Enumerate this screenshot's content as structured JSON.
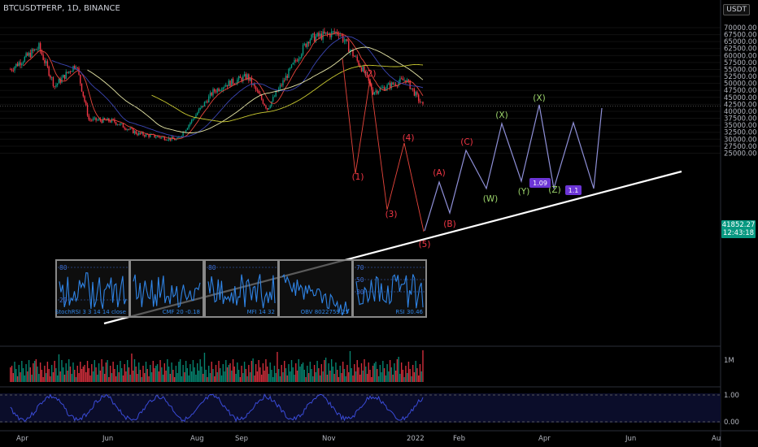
{
  "header": {
    "symbol": "BTCUSDTPERP, 1D, BINANCE",
    "currency": "USDT"
  },
  "price_tag": {
    "price": "41852.27",
    "countdown": "12:43:18"
  },
  "colors": {
    "up": "#089981",
    "down": "#f23645",
    "line_white": "#ffffff",
    "projection": "#8f90d8",
    "wave_red": "#f23645",
    "wave_green": "#9bd36a",
    "rsi": "#3a4bd8",
    "box_label": "#6c35d6"
  },
  "chart_data": {
    "type": "candlestick",
    "y_axis_ticks": [
      "70000.00",
      "67500.00",
      "65000.00",
      "62500.00",
      "60000.00",
      "57500.00",
      "55000.00",
      "52500.00",
      "50000.00",
      "47500.00",
      "45000.00",
      "42500.00",
      "40000.00",
      "37500.00",
      "35000.00",
      "32500.00",
      "30000.00",
      "27500.00",
      "25000.00"
    ],
    "ylim": [
      24000,
      71500
    ],
    "x_axis_labels": [
      "Apr",
      "Jun",
      "Aug",
      "Sep",
      "Nov",
      "2022",
      "Feb",
      "Apr",
      "Jun",
      "Au"
    ],
    "approx_close_path": [
      {
        "date": "2021-03-25",
        "close": 55000
      },
      {
        "date": "2021-04-14",
        "close": 63000
      },
      {
        "date": "2021-04-25",
        "close": 49000
      },
      {
        "date": "2021-05-10",
        "close": 57000
      },
      {
        "date": "2021-05-19",
        "close": 37000
      },
      {
        "date": "2021-06-05",
        "close": 36500
      },
      {
        "date": "2021-06-22",
        "close": 32000
      },
      {
        "date": "2021-07-20",
        "close": 29800
      },
      {
        "date": "2021-08-14",
        "close": 47000
      },
      {
        "date": "2021-08-22",
        "close": 49500
      },
      {
        "date": "2021-09-07",
        "close": 52500
      },
      {
        "date": "2021-09-21",
        "close": 41000
      },
      {
        "date": "2021-10-20",
        "close": 66000
      },
      {
        "date": "2021-11-10",
        "close": 68500
      },
      {
        "date": "2021-11-28",
        "close": 54000
      },
      {
        "date": "2021-12-04",
        "close": 47000
      },
      {
        "date": "2021-12-27",
        "close": 51500
      },
      {
        "date": "2022-01-08",
        "close": 41800
      }
    ],
    "wave_labels": [
      "(2)",
      "(1)",
      "(4)",
      "(3)",
      "(5)",
      "(A)",
      "(B)",
      "(C)",
      "(W)",
      "(X)",
      "(Y)",
      "(X)",
      "(Z)"
    ],
    "box_labels": [
      "1.09",
      "1.1"
    ],
    "inset_panels": [
      {
        "label": "StochRSI 3 3 14 14 close",
        "ticks": [
          "80",
          "20"
        ]
      },
      {
        "label": "CMF 20 -0.18",
        "ticks": []
      },
      {
        "label": "MFI 14 32",
        "ticks": [
          "80"
        ]
      },
      {
        "label": "OBV 8022759.25",
        "ticks": []
      },
      {
        "label": "RSI 30.46",
        "ticks": [
          "70",
          "50",
          "30"
        ]
      }
    ],
    "volume_axis_label": "1M",
    "oscillator_ticks": [
      "1.00",
      "0.00"
    ]
  }
}
